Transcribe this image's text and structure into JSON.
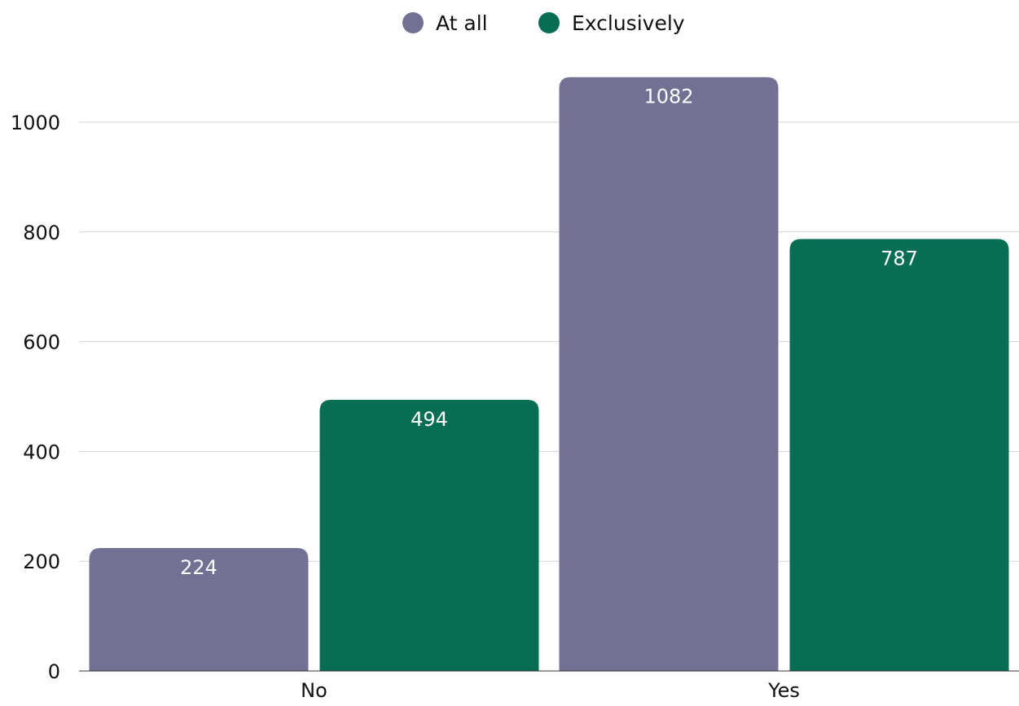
{
  "chart_data": {
    "type": "bar",
    "categories": [
      "No",
      "Yes"
    ],
    "series": [
      {
        "name": "At all",
        "values": [
          224,
          1082
        ],
        "color": "#727194"
      },
      {
        "name": "Exclusively",
        "values": [
          494,
          787
        ],
        "color": "#086e53"
      }
    ],
    "title": "",
    "xlabel": "",
    "ylabel": "",
    "ylim": [
      0,
      1000
    ],
    "yticks": [
      0,
      200,
      400,
      600,
      800,
      1000
    ],
    "grid": true,
    "legend": "top-center",
    "data_labels": true
  }
}
